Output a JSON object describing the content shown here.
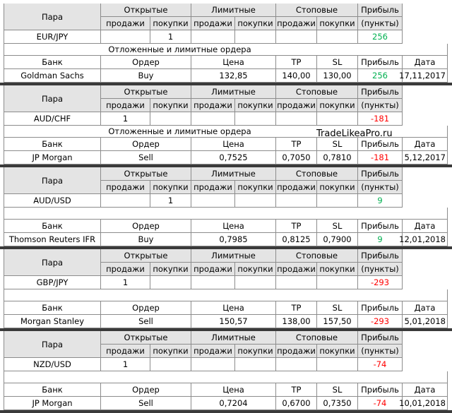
{
  "headers": {
    "pair": "Пара",
    "open": "Открытые",
    "limit": "Лимитные",
    "stop": "Стоповые",
    "profit": "Прибыль",
    "sell": "продажи",
    "buy": "покупки",
    "points": "(пункты)",
    "bank": "Банк",
    "order": "Ордер",
    "price": "Цена",
    "tp": "TP",
    "sl": "SL",
    "date": "Дата"
  },
  "pending_title": "Отложенные и лимитные ордера",
  "watermark": "TradeLikeaPro.ru",
  "profit_colors": {
    "positive": "#00b050",
    "negative": "#ff0000"
  },
  "blocks": [
    {
      "pair": "EUR/JPY",
      "open_sell": null,
      "open_buy": "1",
      "profit": "256",
      "sign": "positive",
      "pending_note": true,
      "bank": "Goldman Sachs",
      "order": "Buy",
      "price": "132,85",
      "tp": "140,00",
      "sl": "130,00",
      "date": "17,11,2017"
    },
    {
      "pair": "AUD/CHF",
      "open_sell": "1",
      "open_buy": null,
      "profit": "-181",
      "sign": "negative",
      "pending_note": true,
      "watermark": true,
      "bank": "JP Morgan",
      "order": "Sell",
      "price": "0,7525",
      "tp": "0,7050",
      "sl": "0,7810",
      "date": "5,12,2017"
    },
    {
      "pair": "AUD/USD",
      "open_sell": null,
      "open_buy": "1",
      "profit": "9",
      "sign": "positive",
      "bank": "Thomson Reuters IFR",
      "order": "Buy",
      "price": "0,7985",
      "tp": "0,8125",
      "sl": "0,7900",
      "date": "12,01,2018"
    },
    {
      "pair": "GBP/JPY",
      "open_sell": "1",
      "open_buy": null,
      "profit": "-293",
      "sign": "negative",
      "bank": "Morgan Stanley",
      "order": "Sell",
      "price": "150,57",
      "tp": "138,00",
      "sl": "157,50",
      "date": "5,01,2018"
    },
    {
      "pair": "NZD/USD",
      "open_sell": "1",
      "open_buy": null,
      "profit": "-74",
      "sign": "negative",
      "bank": "JP Morgan",
      "order": "Sell",
      "price": "0,7204",
      "tp": "0,6700",
      "sl": "0,7350",
      "date": "10,01,2018"
    }
  ]
}
